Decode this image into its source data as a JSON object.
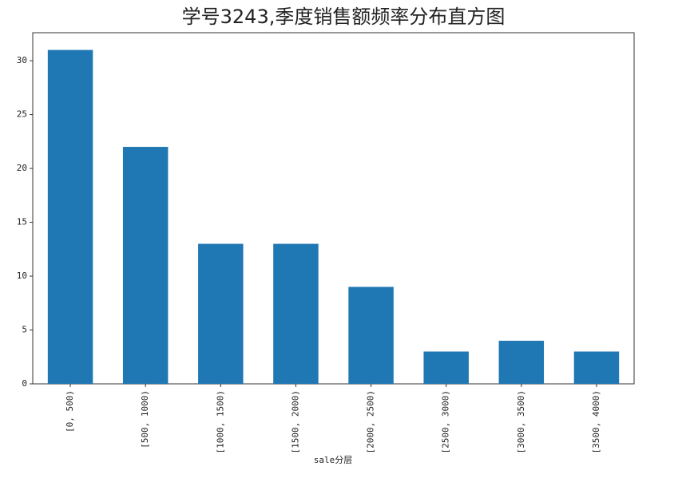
{
  "chart_data": {
    "type": "bar",
    "title": "学号3243,季度销售额频率分布直方图",
    "categories": [
      "[0, 500)",
      "[500, 1000)",
      "[1000, 1500)",
      "[1500, 2000)",
      "[2000, 2500)",
      "[2500, 3000)",
      "[3000, 3500)",
      "[3500, 4000)"
    ],
    "values": [
      31,
      22,
      13,
      13,
      9,
      3,
      4,
      3
    ],
    "color": "#1f77b4",
    "xlabel": "sale分层",
    "ylim": [
      0,
      32.6
    ],
    "yticks": [
      0,
      5,
      10,
      15,
      20,
      25,
      30
    ]
  }
}
